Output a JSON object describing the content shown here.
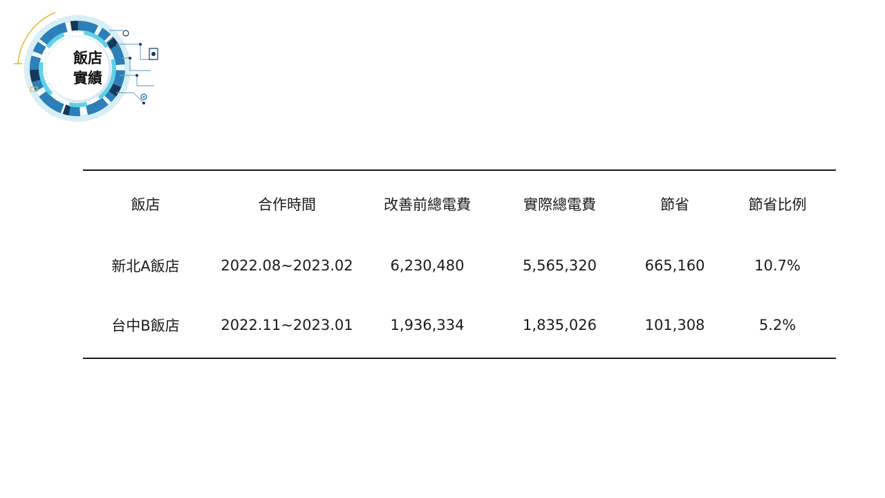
{
  "badge": {
    "title_line1": "飯店",
    "title_line2": "實績",
    "colors": {
      "ring_dark": "#16375a",
      "ring_blue": "#2c7fb8",
      "ring_cyan": "#5fd0e8",
      "accent_gold": "#e8b83a",
      "dots": "#7fcde6"
    }
  },
  "table": {
    "headers": [
      "飯店",
      "合作時間",
      "改善前總電費",
      "實際總電費",
      "節省",
      "節省比例"
    ],
    "rows": [
      [
        "新北A飯店",
        "2022.08~2023.02",
        "6,230,480",
        "5,565,320",
        "665,160",
        "10.7%"
      ],
      [
        "台中B飯店",
        "2022.11~2023.01",
        "1,936,334",
        "1,835,026",
        "101,308",
        "5.2%"
      ]
    ]
  }
}
